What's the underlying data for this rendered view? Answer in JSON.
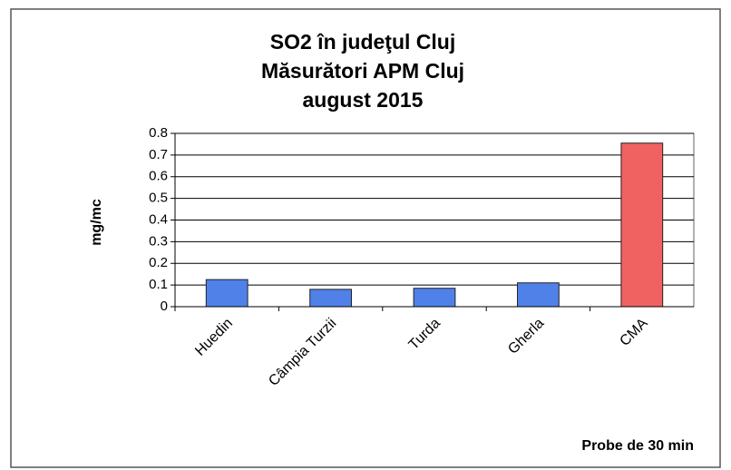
{
  "chart_data": {
    "type": "bar",
    "title": [
      "SO2 în judeţul Cluj",
      "Măsurători APM Cluj",
      "august 2015"
    ],
    "y_label": "mg/mc",
    "x_label": "Probe de 30 min",
    "categories": [
      "Huedin",
      "Câmpia Turzii",
      "Turda",
      "Gherla",
      "CMA"
    ],
    "values": [
      0.125,
      0.08,
      0.085,
      0.11,
      0.755
    ],
    "colors": [
      "#4f81e8",
      "#4f81e8",
      "#4f81e8",
      "#4f81e8",
      "#f06262"
    ],
    "ylim": [
      0,
      0.8
    ],
    "yticks": [
      0,
      0.1,
      0.2,
      0.3,
      0.4,
      0.5,
      0.6,
      0.7,
      0.8
    ],
    "grid": true
  }
}
